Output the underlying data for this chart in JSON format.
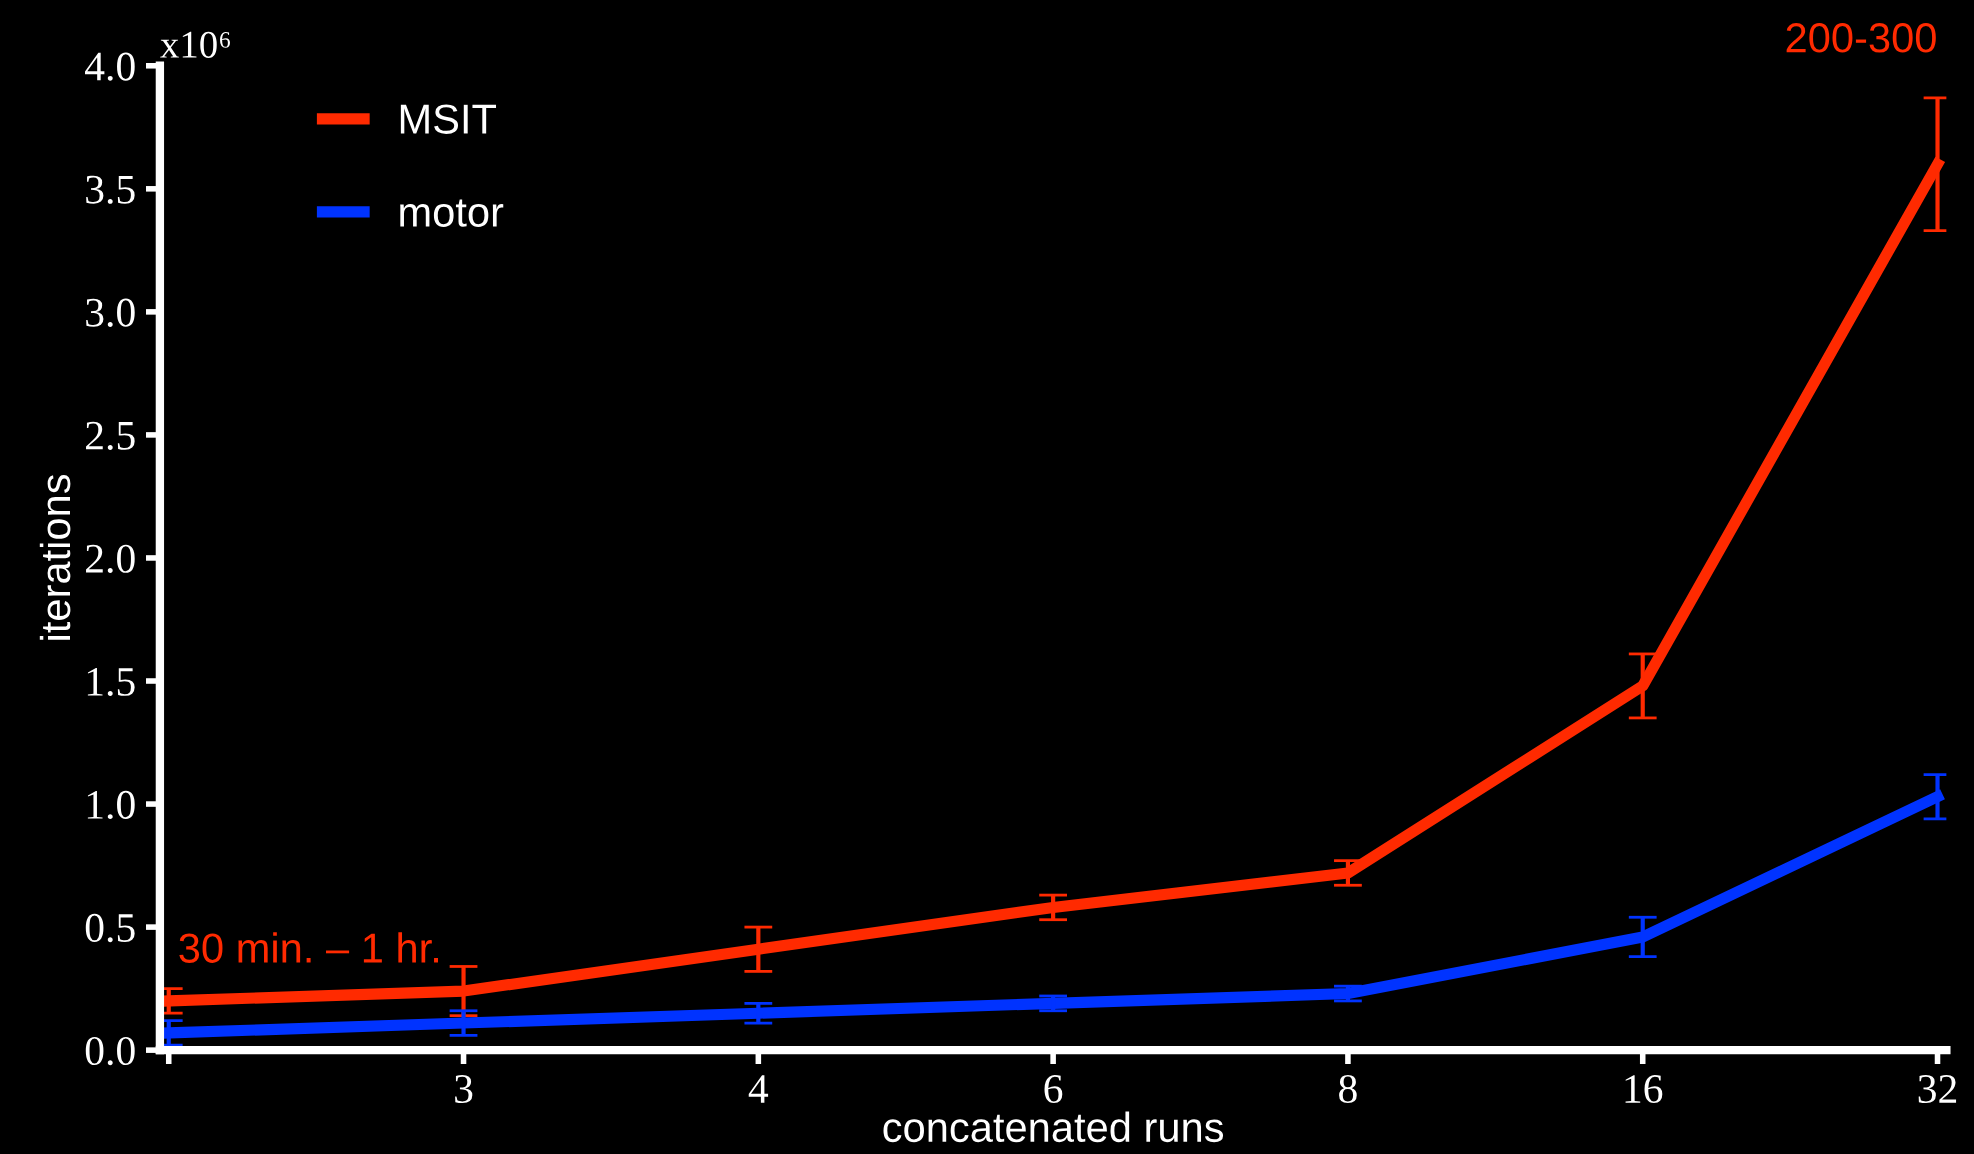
{
  "chart_data": {
    "type": "line",
    "xlabel": "concatenated runs",
    "ylabel": "iterations",
    "categories": [
      null,
      "3",
      "4",
      "6",
      "8",
      "16",
      "32"
    ],
    "ylim": [
      0,
      4.0
    ],
    "yticks": [
      {
        "value": 0,
        "label": "0.0"
      },
      {
        "value": 0.5,
        "label": "0.5"
      },
      {
        "value": 1,
        "label": "1.0"
      },
      {
        "value": 1.5,
        "label": "1.5"
      },
      {
        "value": 2,
        "label": "2.0"
      },
      {
        "value": 2.5,
        "label": "2.5"
      },
      {
        "value": 3,
        "label": "3.0"
      },
      {
        "value": 3.5,
        "label": "3.5"
      },
      {
        "value": 4,
        "label": "4.0"
      }
    ],
    "series": [
      {
        "name": "MSIT",
        "color": "#ff2a00",
        "values": [
          0.2,
          0.24,
          0.41,
          0.58,
          0.72,
          1.48,
          3.6
        ],
        "errors": [
          0.05,
          0.1,
          0.09,
          0.05,
          0.05,
          0.13,
          0.27
        ]
      },
      {
        "name": "motor",
        "color": "#0033ff",
        "values": [
          0.07,
          0.11,
          0.15,
          0.19,
          0.23,
          0.46,
          1.03
        ],
        "errors": [
          0.05,
          0.05,
          0.04,
          0.03,
          0.03,
          0.08,
          0.09
        ]
      }
    ],
    "annotations": [
      "x10⁶",
      "30 min. – 1 hr.",
      "200-300"
    ],
    "legend": "top left",
    "grid": false,
    "marker": "none",
    "line_style": "solid"
  }
}
